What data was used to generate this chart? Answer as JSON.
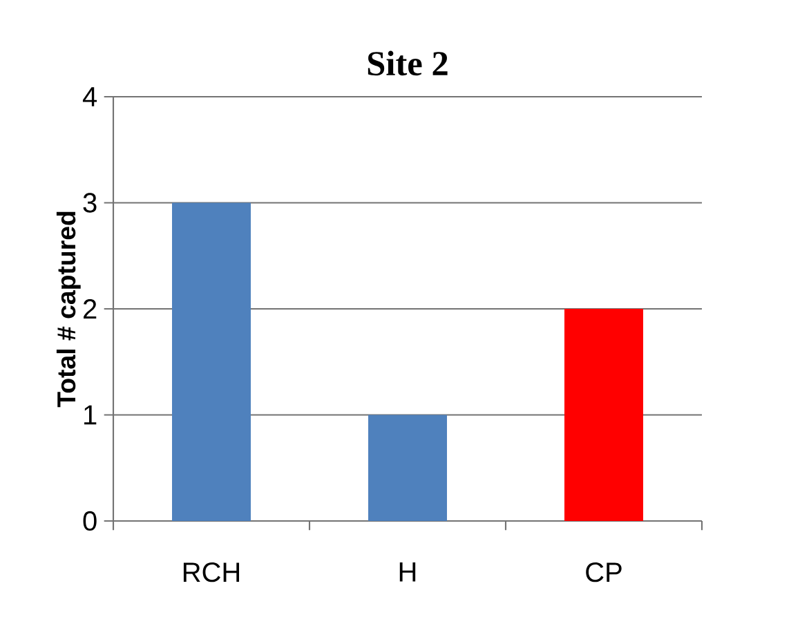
{
  "chart_data": {
    "type": "bar",
    "title": "Site 2",
    "ylabel": "Total # captured",
    "categories": [
      "RCH",
      "H",
      "CP"
    ],
    "values": [
      3,
      1,
      2
    ],
    "colors": [
      "#4f81bd",
      "#4f81bd",
      "#ff0000"
    ],
    "ylim": [
      0,
      4
    ],
    "yticks": [
      0,
      1,
      2,
      3,
      4
    ],
    "grid": "y"
  }
}
